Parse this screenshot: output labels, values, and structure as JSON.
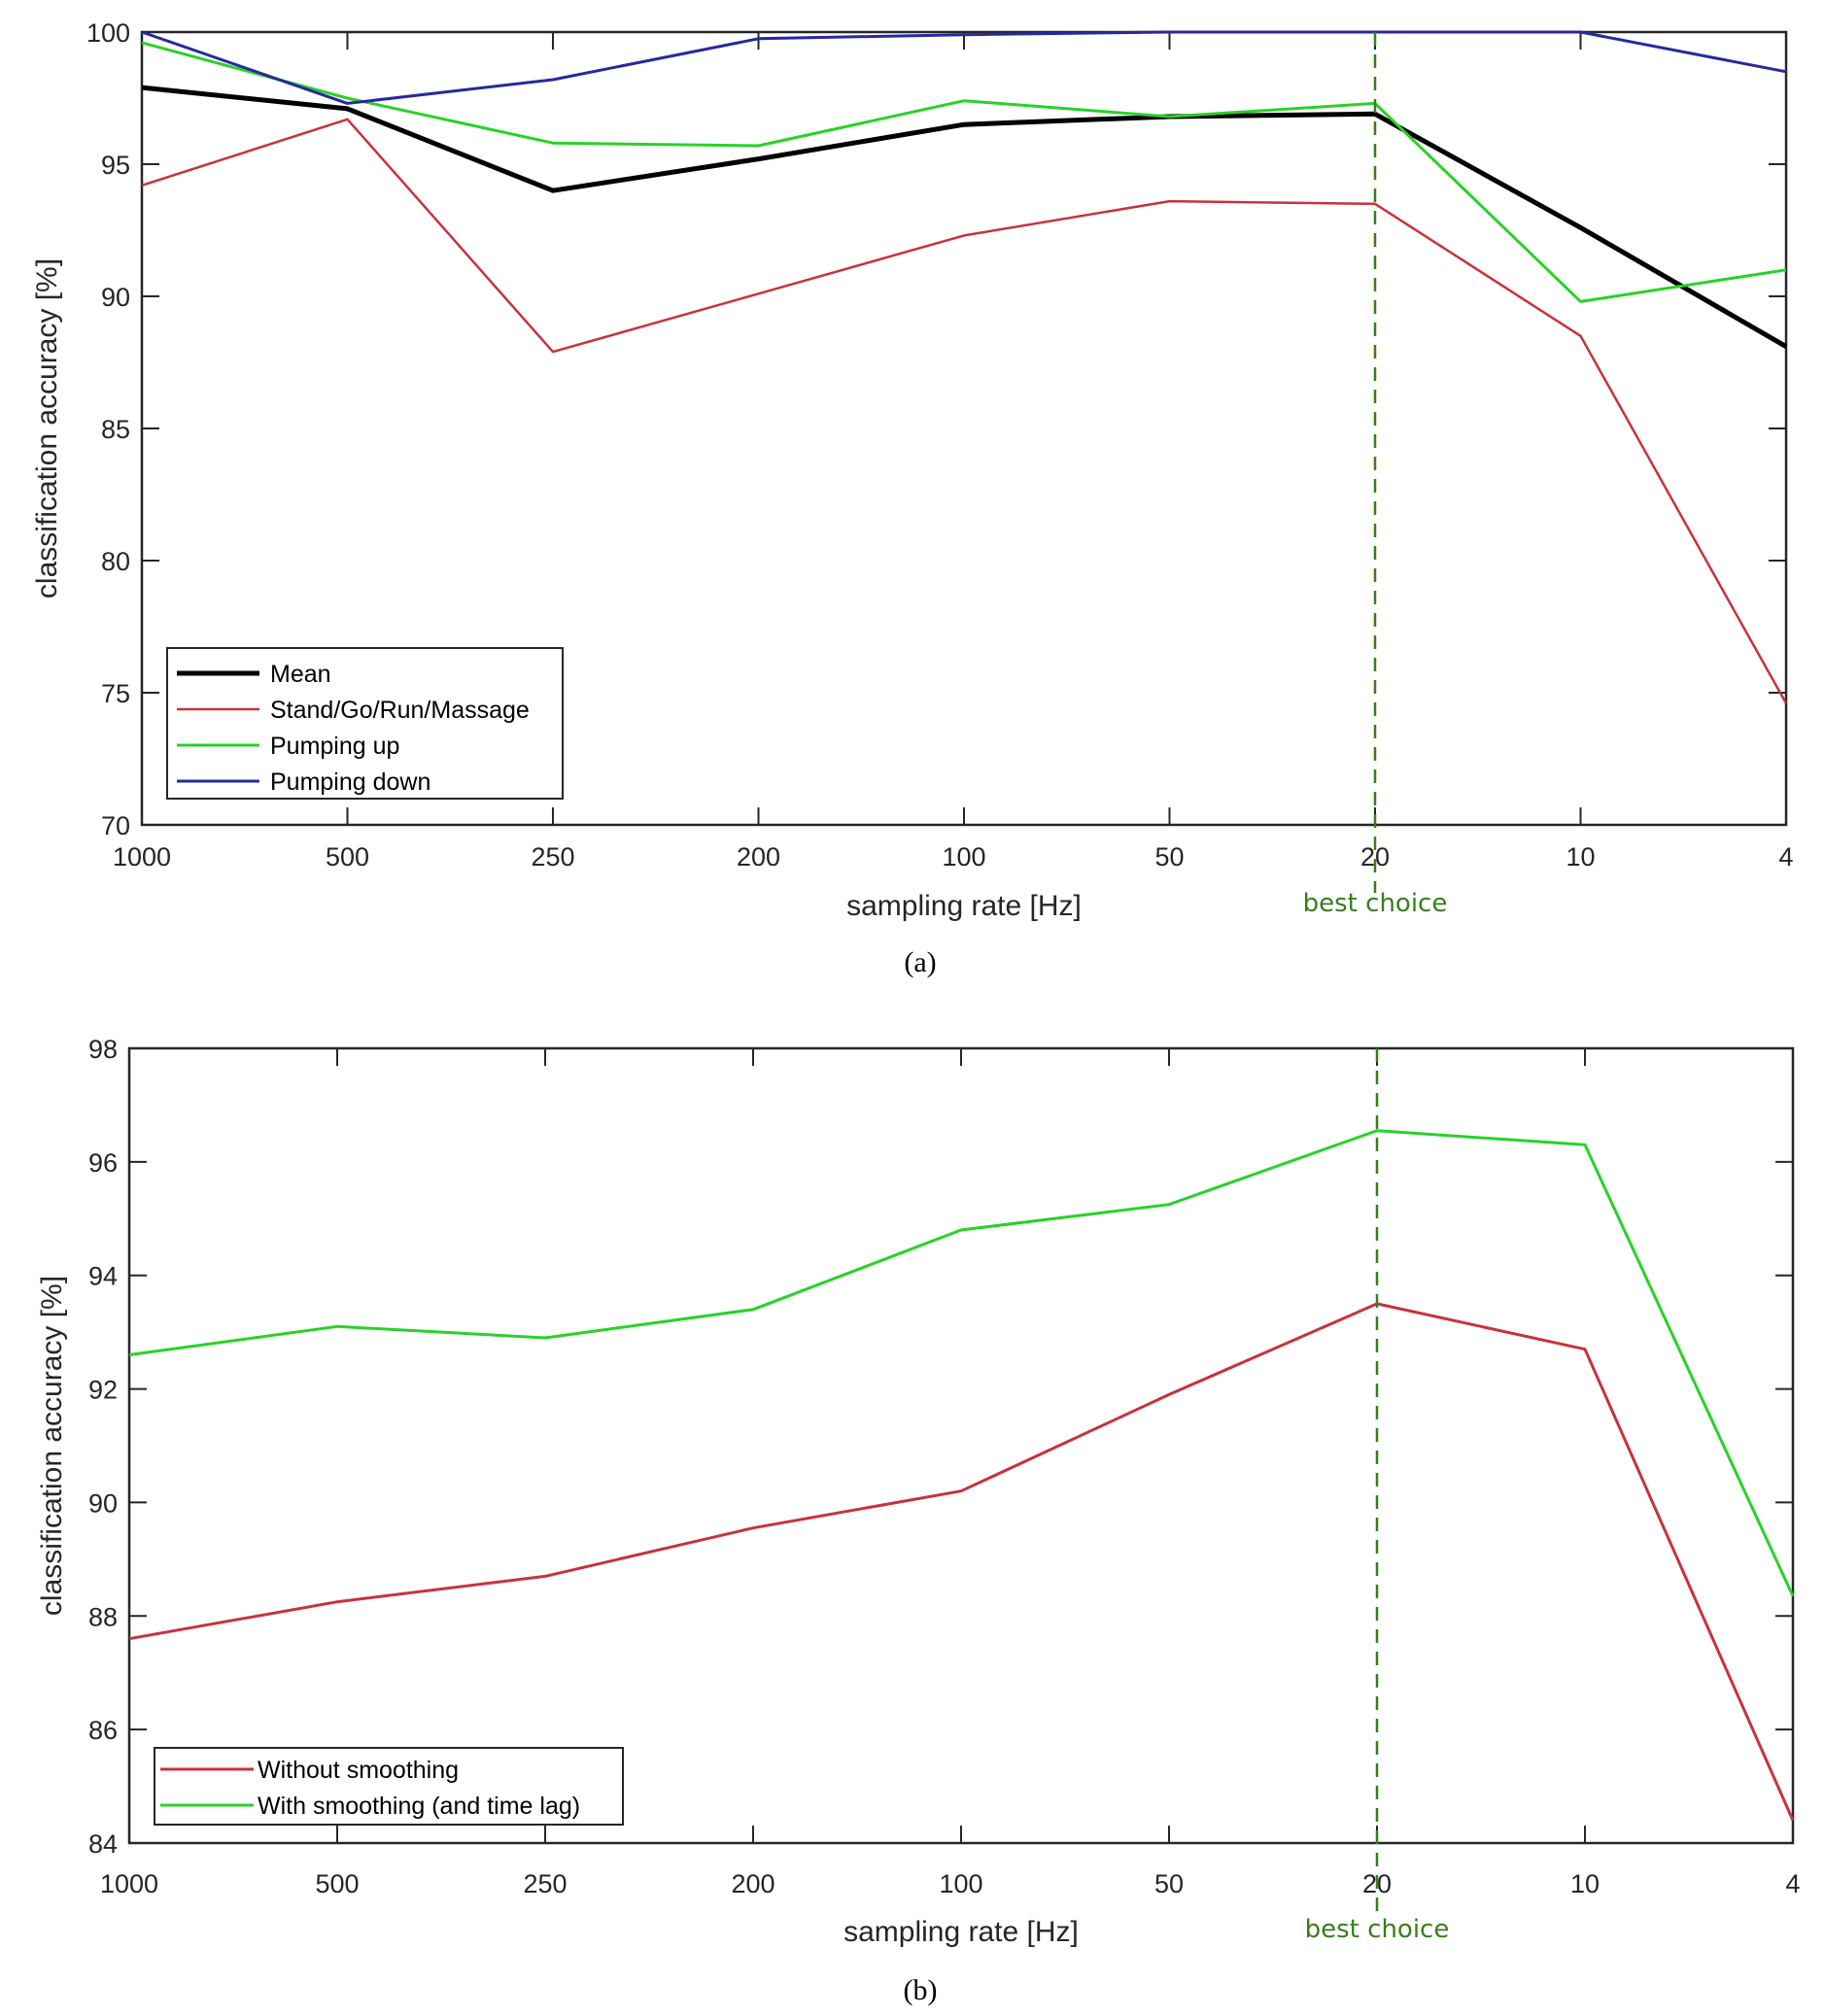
{
  "annotation_color": "#3a7d1c",
  "chart_data": [
    {
      "id": "a",
      "type": "line",
      "caption": "(a)",
      "title": "",
      "xlabel": "sampling rate [Hz]",
      "ylabel": "classification accuracy [%]",
      "categories": [
        "1000",
        "500",
        "250",
        "200",
        "100",
        "50",
        "20",
        "10",
        "4"
      ],
      "ylim": [
        70,
        100
      ],
      "yticks": [
        70,
        75,
        80,
        85,
        90,
        95,
        100
      ],
      "grid": false,
      "legend_position": "bottom-left",
      "series": [
        {
          "name": "Mean",
          "color": "#000000",
          "width": 5,
          "values": [
            97.9,
            97.1,
            94.0,
            95.2,
            96.5,
            96.8,
            96.9,
            92.6,
            88.1
          ]
        },
        {
          "name": "Stand/Go/Run/Massage",
          "color": "#c8323c",
          "width": 2.5,
          "values": [
            94.2,
            96.7,
            87.9,
            90.1,
            92.3,
            93.6,
            93.5,
            88.5,
            74.6
          ]
        },
        {
          "name": "Pumping up",
          "color": "#28d228",
          "width": 3,
          "values": [
            99.6,
            97.5,
            95.8,
            95.7,
            97.4,
            96.8,
            97.3,
            89.8,
            91.0
          ]
        },
        {
          "name": "Pumping down",
          "color": "#2828a0",
          "width": 3,
          "values": [
            100.0,
            97.3,
            98.2,
            99.75,
            99.9,
            100.0,
            100.0,
            100.0,
            98.5
          ]
        }
      ],
      "annotations": [
        {
          "type": "vline",
          "category": "20",
          "style": "dashed",
          "label": "best choice"
        }
      ]
    },
    {
      "id": "b",
      "type": "line",
      "caption": "(b)",
      "title": "",
      "xlabel": "sampling rate [Hz]",
      "ylabel": "classification accuracy [%]",
      "categories": [
        "1000",
        "500",
        "250",
        "200",
        "100",
        "50",
        "20",
        "10",
        "4"
      ],
      "ylim": [
        84,
        98
      ],
      "yticks": [
        84,
        86,
        88,
        90,
        92,
        94,
        96,
        98
      ],
      "grid": false,
      "legend_position": "bottom-left",
      "series": [
        {
          "name": "Without smoothing",
          "color": "#c8323c",
          "width": 3,
          "values": [
            87.6,
            88.25,
            88.7,
            89.55,
            90.2,
            91.9,
            93.5,
            92.7,
            84.4
          ]
        },
        {
          "name": "With smoothing (and time lag)",
          "color": "#28d228",
          "width": 3,
          "values": [
            92.6,
            93.1,
            92.9,
            93.4,
            94.8,
            95.25,
            96.55,
            96.3,
            88.35
          ]
        }
      ],
      "annotations": [
        {
          "type": "vline",
          "category": "20",
          "style": "dashed",
          "label": "best choice"
        }
      ]
    }
  ]
}
